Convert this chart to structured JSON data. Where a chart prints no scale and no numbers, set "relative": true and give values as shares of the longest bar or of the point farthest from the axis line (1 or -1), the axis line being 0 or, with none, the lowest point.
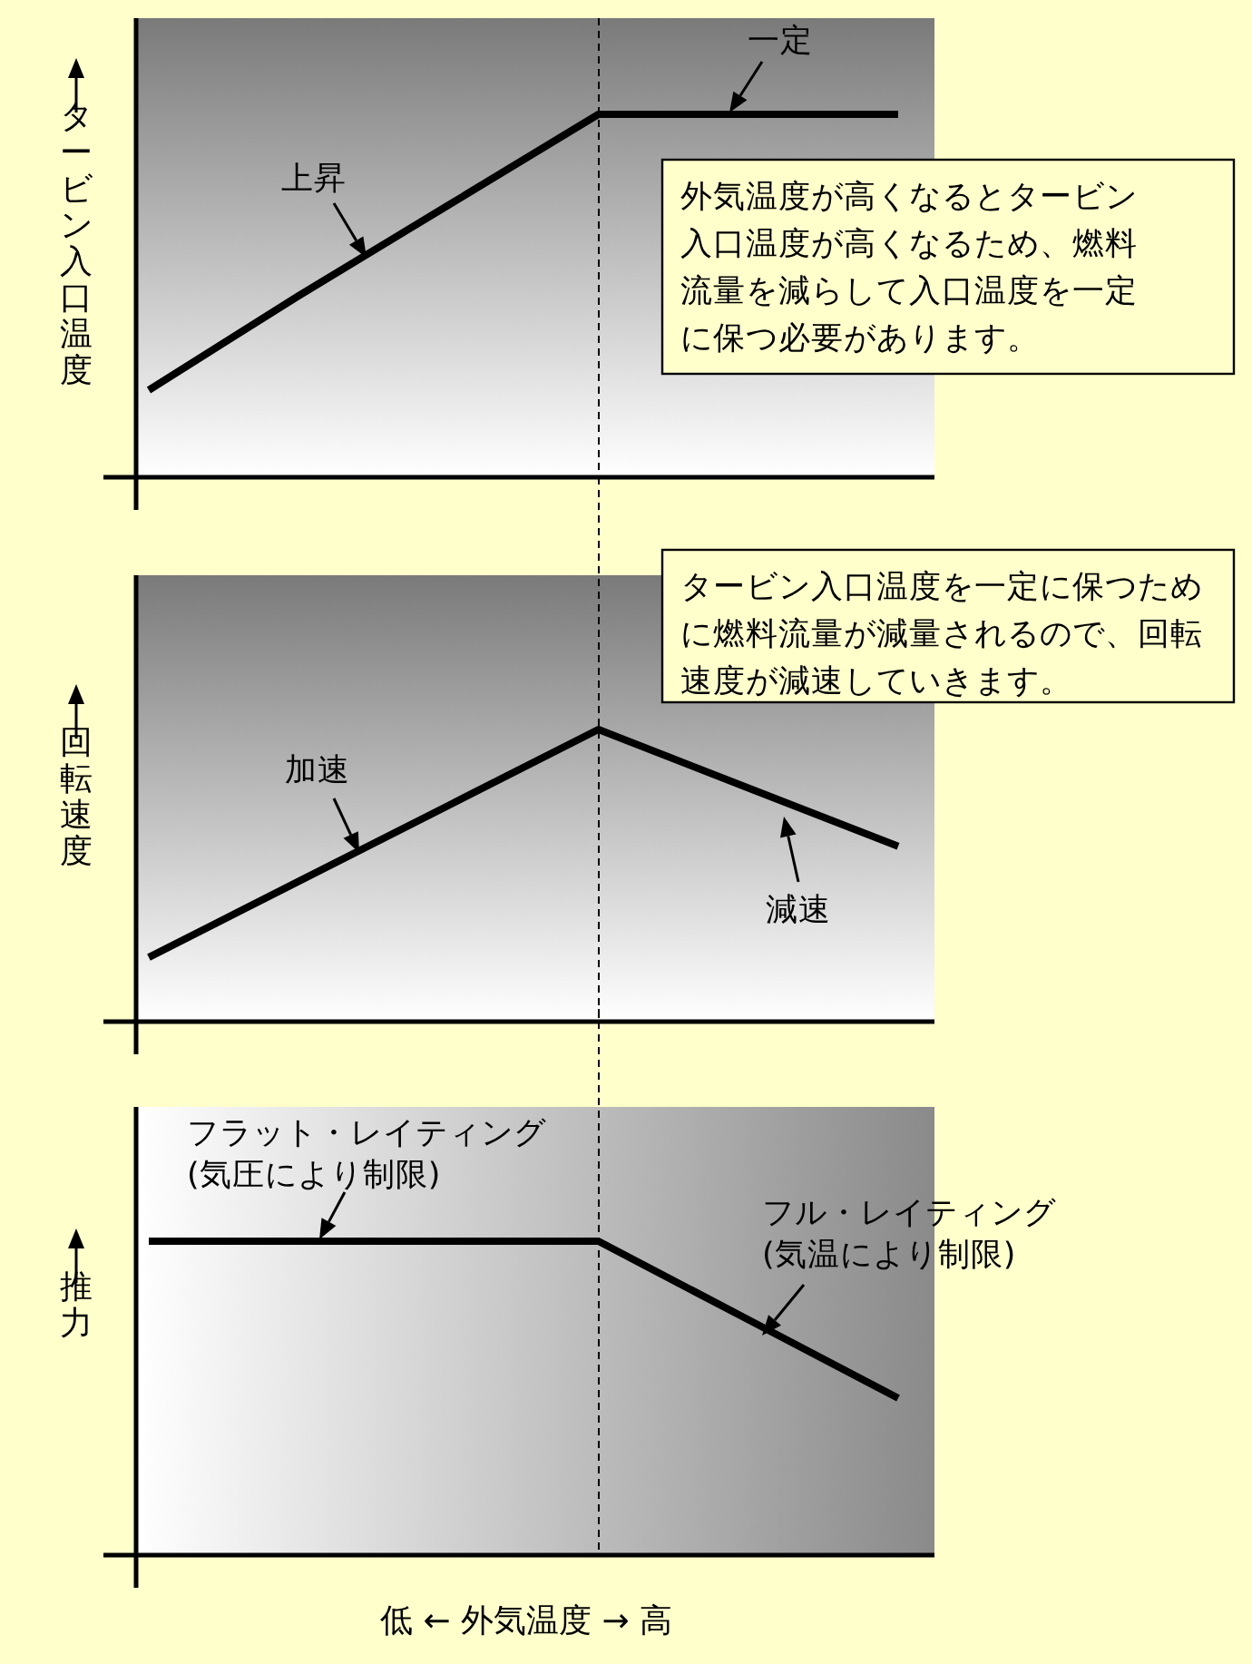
{
  "chart_data": [
    {
      "type": "line",
      "relative": true,
      "ylabel": "タービン入口温度",
      "categories": [
        null,
        null,
        null,
        null,
        null,
        null
      ],
      "series": [
        {
          "color": "#000000",
          "values": [
            0.24,
            0.5,
            0.75,
            1,
            1,
            1
          ]
        }
      ],
      "annotations": [
        "上昇",
        "一定",
        "外気温度が高くなるとタービン入口温度が高くなるため、燃料流量を減らして入口温度を一定に保つ必要があります。"
      ]
    },
    {
      "type": "line",
      "relative": true,
      "ylabel": "回転速度",
      "categories": [
        null,
        null,
        null,
        null,
        null,
        null
      ],
      "series": [
        {
          "color": "#000000",
          "values": [
            0.22,
            0.48,
            0.74,
            1,
            0.8,
            0.6
          ]
        }
      ],
      "annotations": [
        "タービン入口温度を一定に保つために燃料流量が減量されるので、回転速度が減速していきます。",
        "加速",
        "減速"
      ]
    },
    {
      "type": "line",
      "relative": true,
      "ylabel": "推力",
      "xlabel": "低 ← 外気温度 → 高",
      "categories": [
        null,
        null,
        null,
        null,
        null,
        null
      ],
      "series": [
        {
          "color": "#000000",
          "values": [
            1,
            1,
            1,
            1,
            0.75,
            0.5
          ]
        }
      ],
      "annotations": [
        "フラット・レイティング(気圧により制限)",
        "フル・レイティング(気温により制限)"
      ]
    }
  ]
}
